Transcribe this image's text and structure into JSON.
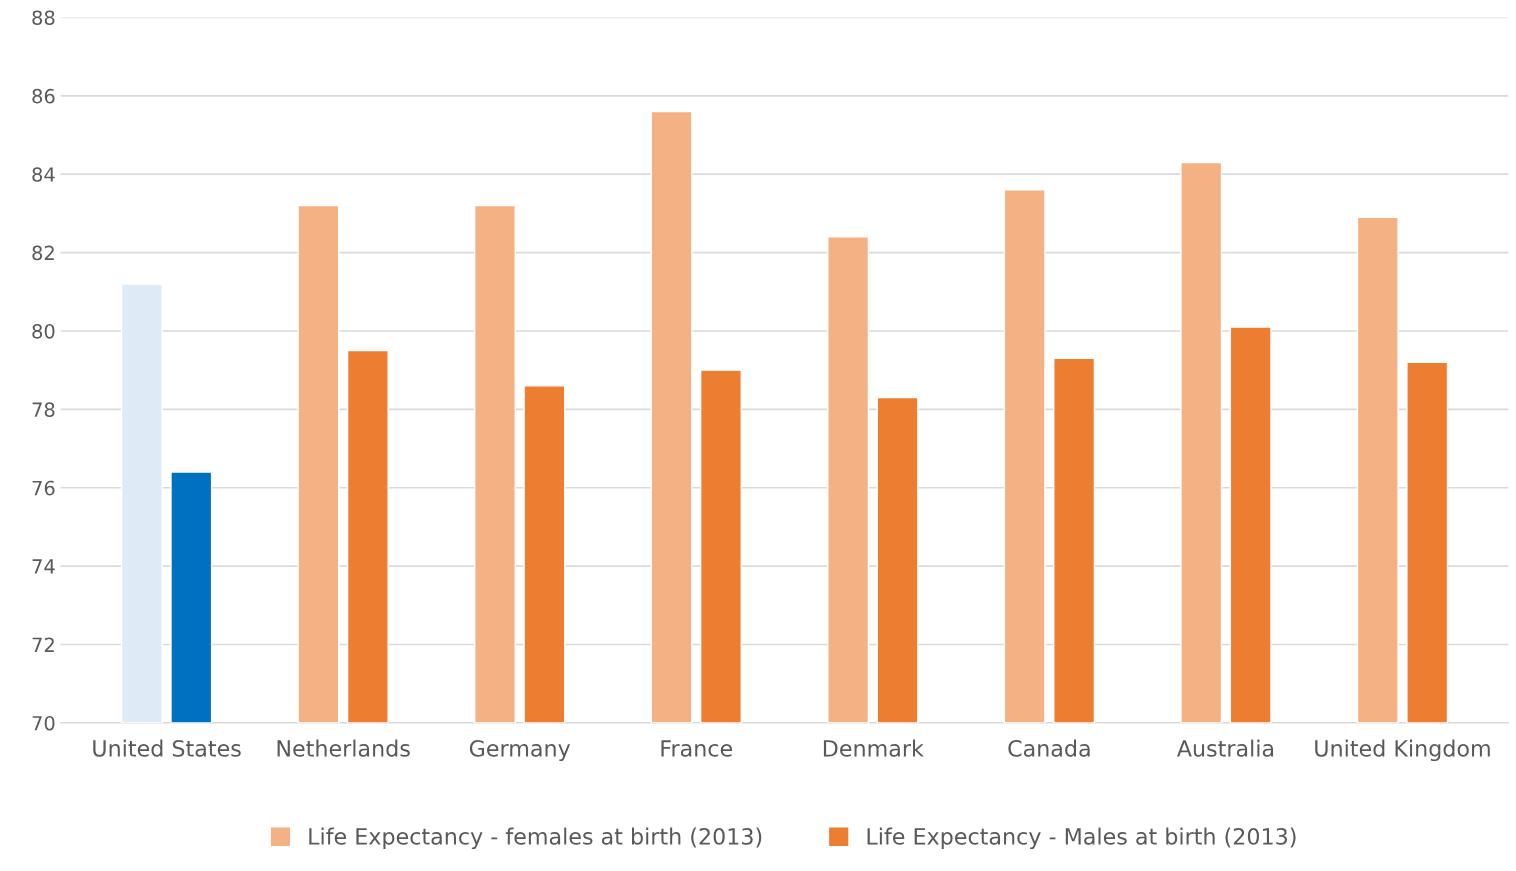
{
  "chart_data": {
    "type": "bar",
    "categories": [
      "United States",
      "Netherlands",
      "Germany",
      "France",
      "Denmark",
      "Canada",
      "Australia",
      "United Kingdom"
    ],
    "series": [
      {
        "name": "Life Expectancy - females at birth (2013)",
        "color": "#f4b183",
        "colors": [
          "#deebf7",
          "#f4b183",
          "#f4b183",
          "#f4b183",
          "#f4b183",
          "#f4b183",
          "#f4b183",
          "#f4b183"
        ],
        "values": [
          81.2,
          83.2,
          83.2,
          85.6,
          82.4,
          83.6,
          84.3,
          82.9
        ]
      },
      {
        "name": "Life Expectancy - Males at birth (2013)",
        "color": "#ed7d31",
        "colors": [
          "#0070c0",
          "#ed7d31",
          "#ed7d31",
          "#ed7d31",
          "#ed7d31",
          "#ed7d31",
          "#ed7d31",
          "#ed7d31"
        ],
        "values": [
          76.4,
          79.5,
          78.6,
          79.0,
          78.3,
          79.3,
          80.1,
          79.2
        ]
      }
    ],
    "ylim": [
      70,
      88
    ],
    "yticks": [
      70,
      72,
      74,
      76,
      78,
      80,
      82,
      84,
      86,
      88
    ],
    "grid": "y",
    "legend": "bottom"
  }
}
